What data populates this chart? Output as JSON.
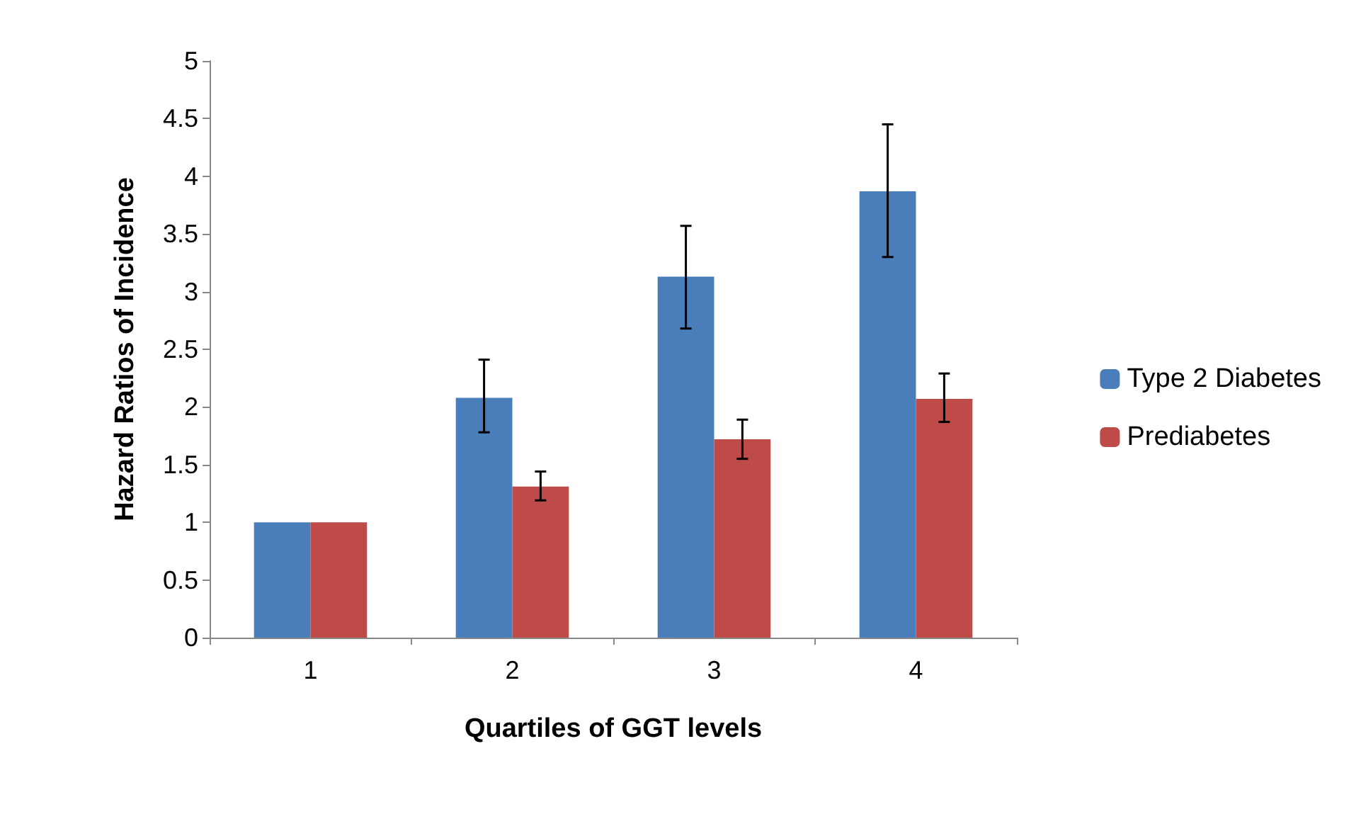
{
  "chart_data": {
    "type": "bar",
    "xlabel": "Quartiles of GGT levels",
    "ylabel": "Hazard Ratios of Incidence",
    "categories": [
      "1",
      "2",
      "3",
      "4"
    ],
    "series": [
      {
        "name": "Type 2 Diabetes",
        "color": "#4a7ebb",
        "values": [
          1.0,
          2.08,
          3.13,
          3.87
        ],
        "errors": [
          null,
          [
            1.78,
            2.41
          ],
          [
            2.68,
            3.57
          ],
          [
            3.3,
            4.45
          ]
        ]
      },
      {
        "name": "Prediabetes",
        "color": "#be4b48",
        "values": [
          1.0,
          1.31,
          1.72,
          2.07
        ],
        "errors": [
          null,
          [
            1.19,
            1.44
          ],
          [
            1.55,
            1.89
          ],
          [
            1.87,
            2.29
          ]
        ]
      }
    ],
    "ylim": [
      0,
      5
    ],
    "yticks": [
      0,
      0.5,
      1,
      1.5,
      2,
      2.5,
      3,
      3.5,
      4,
      4.5,
      5
    ],
    "grid": false,
    "legend": "right"
  }
}
